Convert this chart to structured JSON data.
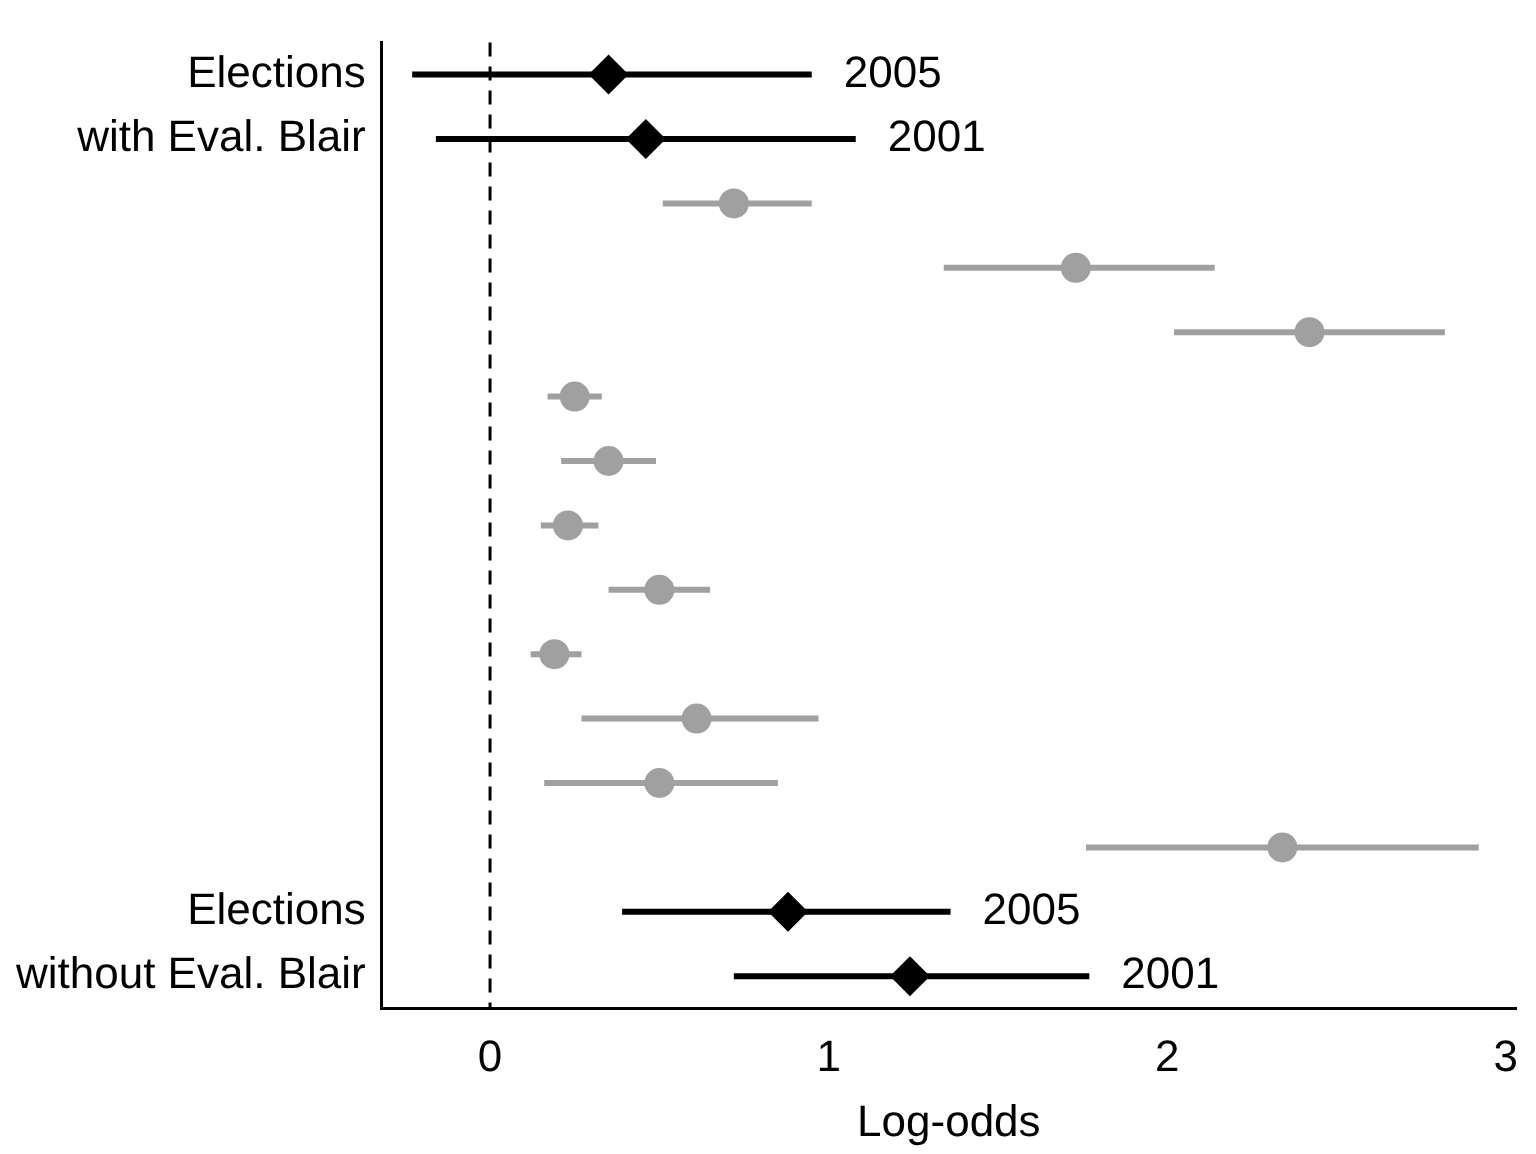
{
  "chart_data": {
    "type": "scatter",
    "orientation": "horizontal",
    "xlabel": "Log-odds",
    "categories": [
      "Elections",
      "with Eval. Blair",
      null,
      null,
      null,
      null,
      null,
      null,
      null,
      null,
      null,
      null,
      null,
      "Elections",
      "without Eval. Blair"
    ],
    "series": [
      {
        "name": "2005",
        "color": "#000000",
        "marker": "diamond",
        "values": [
          0.35,
          null,
          null,
          null,
          null,
          null,
          null,
          null,
          null,
          null,
          null,
          null,
          null,
          0.88,
          null
        ],
        "errors": [
          [
            -0.23,
            0.95
          ],
          null,
          null,
          null,
          null,
          null,
          null,
          null,
          null,
          null,
          null,
          null,
          null,
          [
            0.39,
            1.36
          ],
          null
        ]
      },
      {
        "name": "2001",
        "color": "#000000",
        "marker": "diamond",
        "values": [
          null,
          0.46,
          null,
          null,
          null,
          null,
          null,
          null,
          null,
          null,
          null,
          null,
          null,
          null,
          1.24
        ],
        "errors": [
          null,
          [
            -0.16,
            1.08
          ],
          null,
          null,
          null,
          null,
          null,
          null,
          null,
          null,
          null,
          null,
          null,
          null,
          [
            0.72,
            1.77
          ]
        ]
      },
      {
        "color": "#a0a0a0",
        "marker": "circle",
        "values": [
          null,
          null,
          0.72,
          1.73,
          2.42,
          0.25,
          0.35,
          0.23,
          0.5,
          0.19,
          0.61,
          0.5,
          2.34,
          null,
          null
        ],
        "errors": [
          null,
          null,
          [
            0.51,
            0.95
          ],
          [
            1.34,
            2.14
          ],
          [
            2.02,
            2.82
          ],
          [
            0.17,
            0.33
          ],
          [
            0.21,
            0.49
          ],
          [
            0.15,
            0.32
          ],
          [
            0.35,
            0.65
          ],
          [
            0.12,
            0.27
          ],
          [
            0.27,
            0.97
          ],
          [
            0.16,
            0.85
          ],
          [
            1.76,
            2.92
          ],
          null,
          null
        ]
      }
    ],
    "xlim": [
      -0.32,
      3.03
    ],
    "xticks": [
      0,
      1,
      2,
      3
    ],
    "ref_lines": [
      {
        "axis": "x",
        "value": 0,
        "color": "#000000",
        "line_style": "dashed"
      }
    ],
    "grid": false,
    "legend": false
  }
}
